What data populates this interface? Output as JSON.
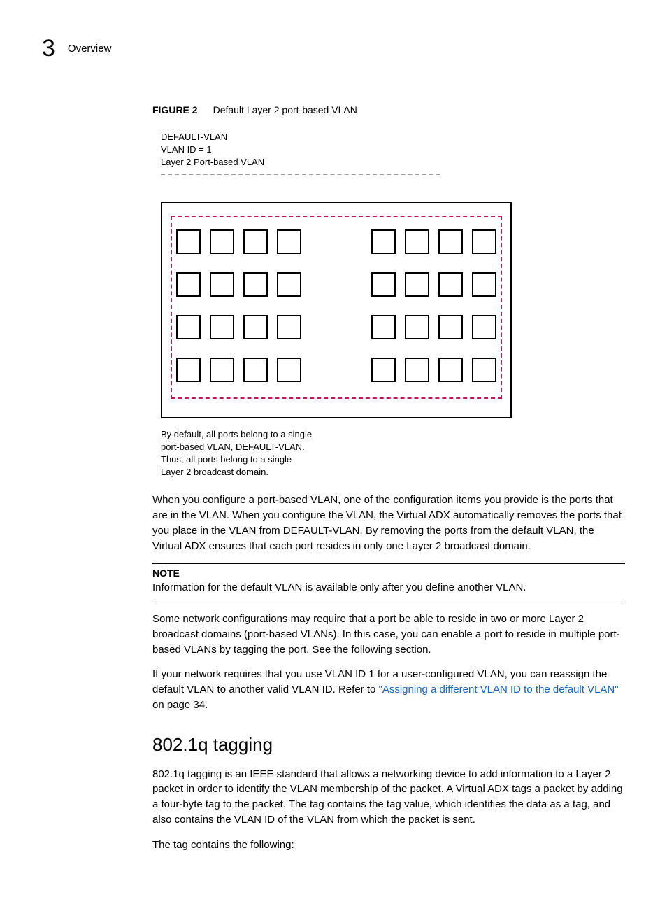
{
  "header": {
    "chapter_number": "3",
    "chapter_title": "Overview"
  },
  "figure_caption": {
    "label": "FIGURE 2",
    "title": "Default Layer 2 port-based VLAN"
  },
  "figure": {
    "top_text_line1": "DEFAULT-VLAN",
    "top_text_line2": "VLAN ID = 1",
    "top_text_line3": "Layer 2 Port-based VLAN",
    "dashed_top_color": "#9e9e9e",
    "frame_border_color": "#000000",
    "inner_dashed_color": "#c2185b",
    "port_border_color": "#000000",
    "rows": 4,
    "groups_per_row": 2,
    "ports_per_group": 4,
    "bottom_text_line1": "By default, all ports belong to a single",
    "bottom_text_line2": "port-based VLAN, DEFAULT-VLAN.",
    "bottom_text_line3": "Thus, all ports belong to a single",
    "bottom_text_line4": "Layer 2 broadcast domain."
  },
  "paragraphs": {
    "p1": "When you configure a port-based VLAN, one of the configuration items you provide is the ports that are in the VLAN. When you configure the VLAN, the Virtual ADX automatically removes the ports that you place in the VLAN from DEFAULT-VLAN. By removing the ports from the default VLAN, the Virtual ADX ensures that each port resides in only one Layer 2 broadcast domain.",
    "p2": "Some network configurations may require that a port be able to reside in two or more Layer 2 broadcast domains (port-based VLANs). In this case, you can enable a port to reside in multiple port-based VLANs by tagging the port. See the following section.",
    "p3_prefix": "If your network requires that you use VLAN ID 1 for a user-configured VLAN, you can reassign the default VLAN to another valid VLAN ID. Refer to ",
    "p3_link": "\"Assigning a different VLAN ID to the default VLAN\"",
    "p3_suffix": " on page 34.",
    "p4": "802.1q tagging is an IEEE standard that allows a networking device to add information to a Layer 2 packet in order to identify the VLAN membership of the packet. A Virtual ADX tags a packet by adding a four-byte tag to the packet. The tag contains the tag value, which identifies the data as a tag, and also contains the VLAN ID of the VLAN from which the packet is sent.",
    "p5": "The tag contains the following:"
  },
  "note": {
    "label": "NOTE",
    "text": "Information for the default VLAN is available only after you define another VLAN."
  },
  "section_heading": "802.1q tagging",
  "colors": {
    "link": "#1565c0",
    "text": "#000000",
    "background": "#ffffff"
  }
}
